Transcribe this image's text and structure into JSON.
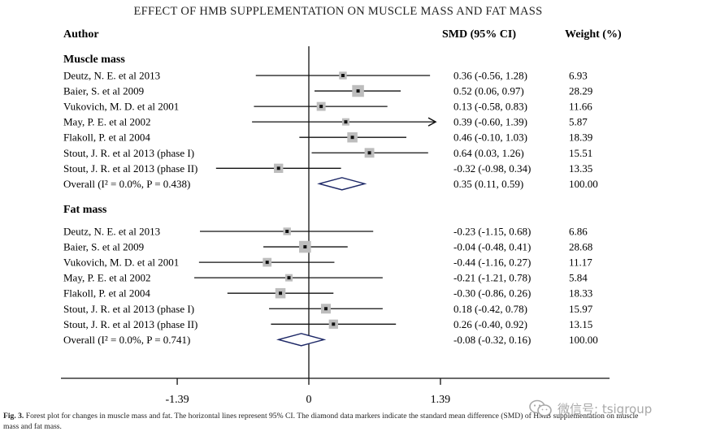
{
  "chart_data": {
    "type": "forest",
    "title": "EFFECT OF HMB SUPPLEMENTATION ON MUSCLE MASS AND FAT MASS",
    "columns": {
      "author": "Author",
      "smd": "SMD (95% CI)",
      "weight": "Weight (%)"
    },
    "x_ticks": [
      "-1.39",
      "0",
      "1.39"
    ],
    "xlim": [
      -1.39,
      1.39
    ],
    "groups": [
      {
        "name": "Muscle mass",
        "studies": [
          {
            "label": "Deutz, N. E. et al 2013",
            "est": 0.36,
            "lo": -0.56,
            "hi": 1.28,
            "ci_text": "0.36 (-0.56,  1.28)",
            "weight": "6.93"
          },
          {
            "label": "Baier, S. et al 2009",
            "est": 0.52,
            "lo": 0.06,
            "hi": 0.97,
            "ci_text": "0.52 (0.06,  0.97)",
            "weight": "28.29"
          },
          {
            "label": "Vukovich, M. D. et al 2001",
            "est": 0.13,
            "lo": -0.58,
            "hi": 0.83,
            "ci_text": "0.13 (-0.58,  0.83)",
            "weight": "11.66"
          },
          {
            "label": "May, P. E. et al 2002",
            "est": 0.39,
            "lo": -0.6,
            "hi": 1.39,
            "ci_text": "0.39 (-0.60,  1.39)",
            "weight": "5.87"
          },
          {
            "label": "Flakoll, P. et al 2004",
            "est": 0.46,
            "lo": -0.1,
            "hi": 1.03,
            "ci_text": "0.46 (-0.10,  1.03)",
            "weight": "18.39"
          },
          {
            "label": "Stout, J. R. et al 2013 (phase I)",
            "est": 0.64,
            "lo": 0.03,
            "hi": 1.26,
            "ci_text": "0.64 (0.03,  1.26)",
            "weight": "15.51"
          },
          {
            "label": "Stout, J. R. et al 2013 (phase II)",
            "est": -0.32,
            "lo": -0.98,
            "hi": 0.34,
            "ci_text": "-0.32 (-0.98,  0.34)",
            "weight": "13.35"
          }
        ],
        "overall": {
          "label": "Overall (I² = 0.0%, P = 0.438)",
          "est": 0.35,
          "lo": 0.11,
          "hi": 0.59,
          "ci_text": "0.35 (0.11,  0.59)",
          "weight": "100.00"
        }
      },
      {
        "name": "Fat mass",
        "studies": [
          {
            "label": "Deutz, N. E. et al 2013",
            "est": -0.23,
            "lo": -1.15,
            "hi": 0.68,
            "ci_text": "-0.23 (-1.15,  0.68)",
            "weight": "6.86"
          },
          {
            "label": "Baier, S. et al 2009",
            "est": -0.04,
            "lo": -0.48,
            "hi": 0.41,
            "ci_text": "-0.04 (-0.48,  0.41)",
            "weight": "28.68"
          },
          {
            "label": "Vukovich, M. D. et al 2001",
            "est": -0.44,
            "lo": -1.16,
            "hi": 0.27,
            "ci_text": "-0.44 (-1.16,  0.27)",
            "weight": "11.17"
          },
          {
            "label": "May, P. E. et al 2002",
            "est": -0.21,
            "lo": -1.21,
            "hi": 0.78,
            "ci_text": "-0.21 (-1.21,  0.78)",
            "weight": "5.84"
          },
          {
            "label": "Flakoll, P. et al 2004",
            "est": -0.3,
            "lo": -0.86,
            "hi": 0.26,
            "ci_text": "-0.30 (-0.86,  0.26)",
            "weight": "18.33"
          },
          {
            "label": "Stout, J. R. et al 2013 (phase I)",
            "est": 0.18,
            "lo": -0.42,
            "hi": 0.78,
            "ci_text": "0.18 (-0.42,  0.78)",
            "weight": "15.97"
          },
          {
            "label": "Stout, J. R. et al 2013 (phase II)",
            "est": 0.26,
            "lo": -0.4,
            "hi": 0.92,
            "ci_text": "0.26 (-0.40,  0.92)",
            "weight": "13.15"
          }
        ],
        "overall": {
          "label": "Overall (I² = 0.0%, P = 0.741)",
          "est": -0.08,
          "lo": -0.32,
          "hi": 0.16,
          "ci_text": "-0.08 (-0.32,  0.16)",
          "weight": "100.00"
        }
      }
    ]
  },
  "caption": {
    "label": "Fig. 3.",
    "text": "Forest plot for changes in muscle mass and fat. The horizontal lines represent 95% CI. The diamond data markers indicate the standard mean difference (SMD) of HMB supplementation on muscle mass and fat mass."
  },
  "watermark": {
    "text": "微信号: tsigroup",
    "icon": "wechat-icon"
  },
  "colors": {
    "line": "#111111",
    "marker": "#bdbdbd",
    "watermark": "#a9a9a9"
  }
}
